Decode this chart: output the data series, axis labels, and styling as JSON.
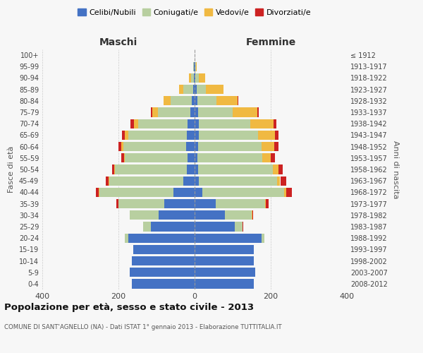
{
  "age_groups": [
    "0-4",
    "5-9",
    "10-14",
    "15-19",
    "20-24",
    "25-29",
    "30-34",
    "35-39",
    "40-44",
    "45-49",
    "50-54",
    "55-59",
    "60-64",
    "65-69",
    "70-74",
    "75-79",
    "80-84",
    "85-89",
    "90-94",
    "95-99",
    "100+"
  ],
  "birth_years": [
    "2008-2012",
    "2003-2007",
    "1998-2002",
    "1993-1997",
    "1988-1992",
    "1983-1987",
    "1978-1982",
    "1973-1977",
    "1968-1972",
    "1963-1967",
    "1958-1962",
    "1953-1957",
    "1948-1952",
    "1943-1947",
    "1938-1942",
    "1933-1937",
    "1928-1932",
    "1923-1927",
    "1918-1922",
    "1913-1917",
    "≤ 1912"
  ],
  "males": {
    "celibe": [
      165,
      170,
      165,
      162,
      175,
      115,
      95,
      80,
      55,
      30,
      20,
      18,
      22,
      20,
      18,
      12,
      8,
      4,
      2,
      1,
      0
    ],
    "coniugato": [
      0,
      0,
      0,
      0,
      8,
      20,
      75,
      120,
      195,
      195,
      190,
      165,
      165,
      155,
      130,
      85,
      55,
      25,
      8,
      2,
      0
    ],
    "vedovo": [
      0,
      0,
      0,
      0,
      0,
      0,
      0,
      0,
      1,
      1,
      2,
      2,
      5,
      8,
      12,
      15,
      18,
      12,
      5,
      1,
      0
    ],
    "divorziato": [
      0,
      0,
      0,
      0,
      0,
      1,
      1,
      5,
      8,
      8,
      5,
      8,
      8,
      8,
      8,
      2,
      1,
      0,
      0,
      0,
      0
    ]
  },
  "females": {
    "nubile": [
      155,
      160,
      155,
      155,
      175,
      105,
      80,
      55,
      20,
      12,
      10,
      8,
      10,
      12,
      12,
      10,
      8,
      5,
      2,
      1,
      0
    ],
    "coniugata": [
      0,
      0,
      0,
      0,
      8,
      20,
      70,
      130,
      215,
      205,
      195,
      170,
      165,
      155,
      135,
      90,
      50,
      25,
      10,
      2,
      0
    ],
    "vedova": [
      0,
      0,
      0,
      0,
      0,
      0,
      1,
      2,
      5,
      8,
      15,
      22,
      35,
      45,
      60,
      65,
      55,
      45,
      15,
      3,
      0
    ],
    "divorziata": [
      0,
      0,
      0,
      0,
      0,
      2,
      2,
      8,
      15,
      15,
      12,
      12,
      10,
      8,
      8,
      3,
      2,
      1,
      0,
      0,
      0
    ]
  },
  "colors": {
    "celibe": "#4472c4",
    "coniugato": "#b8cfa0",
    "vedovo": "#f0b942",
    "divorziato": "#cc2222"
  },
  "title": "Popolazione per età, sesso e stato civile - 2013",
  "subtitle": "COMUNE DI SANT'AGNELLO (NA) - Dati ISTAT 1° gennaio 2013 - Elaborazione TUTTITALIA.IT",
  "xlabel_left": "Maschi",
  "xlabel_right": "Femmine",
  "ylabel_left": "Fasce di età",
  "ylabel_right": "Anni di nascita",
  "xlim": 400,
  "legend_labels": [
    "Celibi/Nubili",
    "Coniugati/e",
    "Vedovi/e",
    "Divorziati/e"
  ],
  "background_color": "#f7f7f7",
  "grid_color": "#cccccc"
}
